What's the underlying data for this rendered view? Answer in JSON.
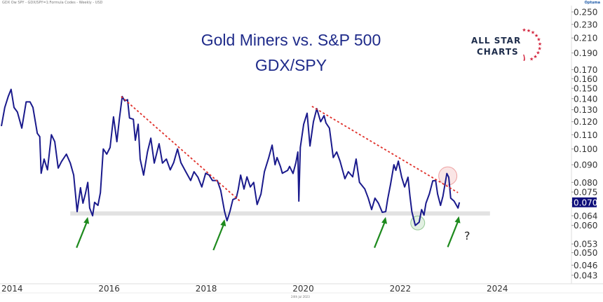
{
  "header": {
    "caption": "GDX Ow SPY - GDX/SPY=1:Formula Codes - Weekly - USD",
    "brand": "Optuma",
    "date": "24th Jul 2023"
  },
  "logo": {
    "line1": "ALL STAR",
    "line2": "CHARTS"
  },
  "chart_data": {
    "type": "line",
    "title": "Gold Miners vs. S&P 500",
    "subtitle": "GDX/SPY",
    "y_scale": "log",
    "ylim": [
      0.043,
      0.25
    ],
    "xlim": [
      2014,
      2025.6
    ],
    "grid": false,
    "line_color": "#1a1a8c",
    "x_ticks": [
      "2014",
      "2016",
      "2018",
      "2020",
      "2022",
      "2024"
    ],
    "y_ticks": [
      "0.250",
      "0.230",
      "0.210",
      "0.190",
      "0.170",
      "0.160",
      "0.150",
      "0.140",
      "0.130",
      "0.120",
      "0.110",
      "0.100",
      "0.090",
      "0.080",
      "0.075",
      "0.070",
      "0.064",
      "0.060",
      "0.053",
      "0.050",
      "0.046",
      "0.043"
    ],
    "last_value_label": "0.070",
    "series": [
      {
        "points": [
          [
            2014.0,
            0.1165
          ],
          [
            2014.07,
            0.132
          ],
          [
            2014.14,
            0.142
          ],
          [
            2014.2,
            0.149
          ],
          [
            2014.26,
            0.132
          ],
          [
            2014.33,
            0.128
          ],
          [
            2014.42,
            0.115
          ],
          [
            2014.51,
            0.137
          ],
          [
            2014.59,
            0.137
          ],
          [
            2014.65,
            0.132
          ],
          [
            2014.74,
            0.111
          ],
          [
            2014.79,
            0.1086
          ],
          [
            2014.82,
            0.085
          ],
          [
            2014.88,
            0.0935
          ],
          [
            2014.95,
            0.087
          ],
          [
            2015.03,
            0.11
          ],
          [
            2015.1,
            0.105
          ],
          [
            2015.17,
            0.088
          ],
          [
            2015.24,
            0.092
          ],
          [
            2015.34,
            0.0966
          ],
          [
            2015.42,
            0.091
          ],
          [
            2015.49,
            0.084
          ],
          [
            2015.56,
            0.0658
          ],
          [
            2015.63,
            0.0772
          ],
          [
            2015.68,
            0.0696
          ],
          [
            2015.73,
            0.074
          ],
          [
            2015.78,
            0.08
          ],
          [
            2015.82,
            0.0674
          ],
          [
            2015.88,
            0.064
          ],
          [
            2015.92,
            0.07
          ],
          [
            2015.99,
            0.0686
          ],
          [
            2016.04,
            0.0747
          ],
          [
            2016.1,
            0.1
          ],
          [
            2016.17,
            0.0966
          ],
          [
            2016.24,
            0.101
          ],
          [
            2016.31,
            0.124
          ],
          [
            2016.38,
            0.105
          ],
          [
            2016.43,
            0.122
          ],
          [
            2016.49,
            0.142
          ],
          [
            2016.54,
            0.138
          ],
          [
            2016.6,
            0.139
          ],
          [
            2016.64,
            0.123
          ],
          [
            2016.72,
            0.122
          ],
          [
            2016.76,
            0.106
          ],
          [
            2016.82,
            0.118
          ],
          [
            2016.86,
            0.0935
          ],
          [
            2016.93,
            0.084
          ],
          [
            2017.01,
            0.098
          ],
          [
            2017.08,
            0.1075
          ],
          [
            2017.15,
            0.091
          ],
          [
            2017.25,
            0.1036
          ],
          [
            2017.32,
            0.091
          ],
          [
            2017.4,
            0.0935
          ],
          [
            2017.48,
            0.087
          ],
          [
            2017.55,
            0.0913
          ],
          [
            2017.63,
            0.1
          ],
          [
            2017.7,
            0.0913
          ],
          [
            2017.8,
            0.0859
          ],
          [
            2017.9,
            0.081
          ],
          [
            2017.97,
            0.0859
          ],
          [
            2018.05,
            0.0828
          ],
          [
            2018.13,
            0.0776
          ],
          [
            2018.21,
            0.085
          ],
          [
            2018.28,
            0.084
          ],
          [
            2018.35,
            0.081
          ],
          [
            2018.45,
            0.081
          ],
          [
            2018.52,
            0.0758
          ],
          [
            2018.6,
            0.0658
          ],
          [
            2018.65,
            0.0619
          ],
          [
            2018.71,
            0.0658
          ],
          [
            2018.77,
            0.0713
          ],
          [
            2018.84,
            0.072
          ],
          [
            2018.88,
            0.0762
          ],
          [
            2018.93,
            0.084
          ],
          [
            2019.0,
            0.0765
          ],
          [
            2019.06,
            0.083
          ],
          [
            2019.13,
            0.0776
          ],
          [
            2019.2,
            0.08
          ],
          [
            2019.27,
            0.069
          ],
          [
            2019.35,
            0.074
          ],
          [
            2019.42,
            0.0859
          ],
          [
            2019.51,
            0.0944
          ],
          [
            2019.58,
            0.1026
          ],
          [
            2019.64,
            0.09
          ],
          [
            2019.68,
            0.0944
          ],
          [
            2019.75,
            0.089
          ],
          [
            2019.79,
            0.085
          ],
          [
            2019.9,
            0.0867
          ],
          [
            2019.94,
            0.089
          ],
          [
            2020.01,
            0.0849
          ],
          [
            2020.07,
            0.0913
          ],
          [
            2020.11,
            0.098
          ],
          [
            2020.13,
            0.0706
          ],
          [
            2020.16,
            0.101
          ],
          [
            2020.23,
            0.118
          ],
          [
            2020.3,
            0.127
          ],
          [
            2020.36,
            0.102
          ],
          [
            2020.43,
            0.12
          ],
          [
            2020.5,
            0.131
          ],
          [
            2020.58,
            0.12
          ],
          [
            2020.65,
            0.125
          ],
          [
            2020.69,
            0.119
          ],
          [
            2020.76,
            0.115
          ],
          [
            2020.84,
            0.0944
          ],
          [
            2020.91,
            0.098
          ],
          [
            2020.98,
            0.0922
          ],
          [
            2021.08,
            0.082
          ],
          [
            2021.15,
            0.0859
          ],
          [
            2021.24,
            0.083
          ],
          [
            2021.31,
            0.0935
          ],
          [
            2021.38,
            0.08
          ],
          [
            2021.49,
            0.0765
          ],
          [
            2021.56,
            0.072
          ],
          [
            2021.63,
            0.0667
          ],
          [
            2021.7,
            0.072
          ],
          [
            2021.77,
            0.0696
          ],
          [
            2021.85,
            0.0655
          ],
          [
            2021.92,
            0.0658
          ],
          [
            2021.96,
            0.0713
          ],
          [
            2022.02,
            0.079
          ],
          [
            2022.09,
            0.09
          ],
          [
            2022.13,
            0.0867
          ],
          [
            2022.18,
            0.0922
          ],
          [
            2022.25,
            0.0828
          ],
          [
            2022.31,
            0.0776
          ],
          [
            2022.38,
            0.0828
          ],
          [
            2022.42,
            0.0729
          ],
          [
            2022.46,
            0.0658
          ],
          [
            2022.53,
            0.06
          ],
          [
            2022.61,
            0.0613
          ],
          [
            2022.66,
            0.0667
          ],
          [
            2022.71,
            0.0643
          ],
          [
            2022.75,
            0.0696
          ],
          [
            2022.82,
            0.074
          ],
          [
            2022.89,
            0.0808
          ],
          [
            2022.95,
            0.081
          ],
          [
            2022.99,
            0.074
          ],
          [
            2023.05,
            0.0686
          ],
          [
            2023.1,
            0.0729
          ],
          [
            2023.18,
            0.0849
          ],
          [
            2023.22,
            0.0828
          ],
          [
            2023.26,
            0.072
          ],
          [
            2023.33,
            0.0706
          ],
          [
            2023.41,
            0.0674
          ],
          [
            2023.44,
            0.07
          ]
        ]
      }
    ],
    "annotations": {
      "trendlines": [
        {
          "from": [
            2016.47,
            0.142
          ],
          "to": [
            2018.93,
            0.0703
          ],
          "color": "#e0302a",
          "style": "dashed"
        },
        {
          "from": [
            2020.4,
            0.133
          ],
          "to": [
            2023.41,
            0.0747
          ],
          "color": "#e0302a",
          "style": "dashed"
        }
      ],
      "support_band": {
        "value": 0.065,
        "from": 2015.42,
        "to": 2024.07,
        "color": "#dcdcdc"
      },
      "circles": [
        {
          "at": [
            2023.2,
            0.0835
          ],
          "color": "#e05050"
        },
        {
          "at": [
            2022.58,
            0.061
          ],
          "color": "#3a9a3a"
        }
      ],
      "arrows": [
        {
          "tip": [
            2015.78,
            0.0635
          ]
        },
        {
          "tip": [
            2018.6,
            0.0625
          ]
        },
        {
          "tip": [
            2021.92,
            0.0635
          ]
        },
        {
          "tip": [
            2023.43,
            0.0638
          ]
        }
      ],
      "arrow_color": "#1e8a1e",
      "question_mark": "?"
    }
  }
}
